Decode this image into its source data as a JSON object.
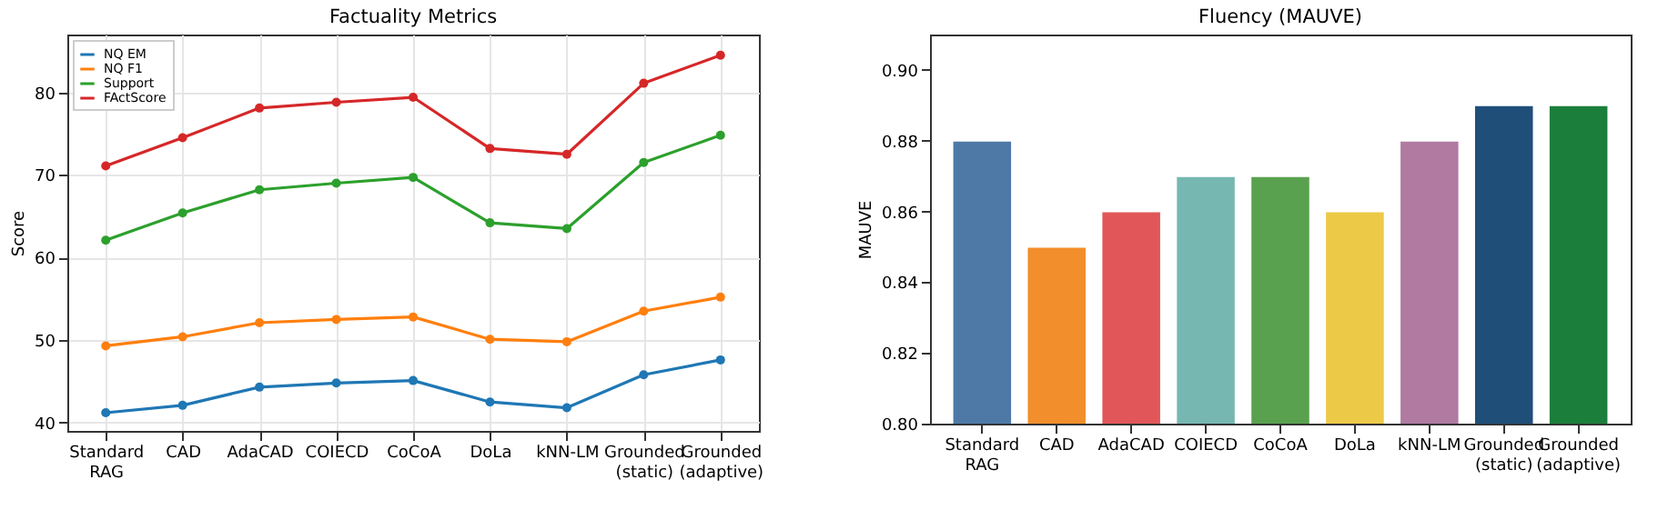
{
  "chart_data": [
    {
      "type": "line",
      "title": "Factuality Metrics",
      "ylabel": "Score",
      "categories": [
        "Standard RAG",
        "CAD",
        "AdaCAD",
        "COIECD",
        "CoCoA",
        "DoLa",
        "kNN-LM",
        "Grounded (static)",
        "Grounded (adaptive)"
      ],
      "series": [
        {
          "name": "NQ EM",
          "color": "#1f77b4",
          "values": [
            41.2,
            42.1,
            44.3,
            44.8,
            45.1,
            42.5,
            41.8,
            45.8,
            47.6
          ]
        },
        {
          "name": "NQ F1",
          "color": "#ff7f0e",
          "values": [
            49.3,
            50.4,
            52.1,
            52.5,
            52.8,
            50.1,
            49.8,
            53.5,
            55.2
          ]
        },
        {
          "name": "Support",
          "color": "#2ca02c",
          "values": [
            62.1,
            65.4,
            68.2,
            69.0,
            69.7,
            64.2,
            63.5,
            71.5,
            74.8
          ]
        },
        {
          "name": "FActScore",
          "color": "#d62728",
          "values": [
            71.1,
            74.5,
            78.1,
            78.8,
            79.4,
            73.2,
            72.5,
            81.1,
            84.5
          ]
        }
      ],
      "ylim": [
        39,
        87
      ],
      "yticks": [
        40,
        50,
        60,
        70,
        80
      ],
      "grid": true,
      "legend": "top left",
      "marker": "circle"
    },
    {
      "type": "bar",
      "title": "Fluency (MAUVE)",
      "ylabel": "MAUVE",
      "categories": [
        "Standard RAG",
        "CAD",
        "AdaCAD",
        "COIECD",
        "CoCoA",
        "DoLa",
        "kNN-LM",
        "Grounded (static)",
        "Grounded (adaptive)"
      ],
      "values": [
        0.88,
        0.85,
        0.86,
        0.87,
        0.87,
        0.86,
        0.88,
        0.89,
        0.89
      ],
      "colors": [
        "#4e79a7",
        "#f28e2b",
        "#e15759",
        "#76b7b2",
        "#59a14f",
        "#edc948",
        "#b07aa1",
        "#1f4e79",
        "#1b7f3b"
      ],
      "ylim": [
        0.8,
        0.91
      ],
      "yticks": [
        {
          "value": 0.8,
          "label": "0.80"
        },
        {
          "value": 0.82,
          "label": "0.82"
        },
        {
          "value": 0.84,
          "label": "0.84"
        },
        {
          "value": 0.86,
          "label": "0.86"
        },
        {
          "value": 0.88,
          "label": "0.88"
        },
        {
          "value": 0.9,
          "label": "0.90"
        }
      ]
    }
  ]
}
